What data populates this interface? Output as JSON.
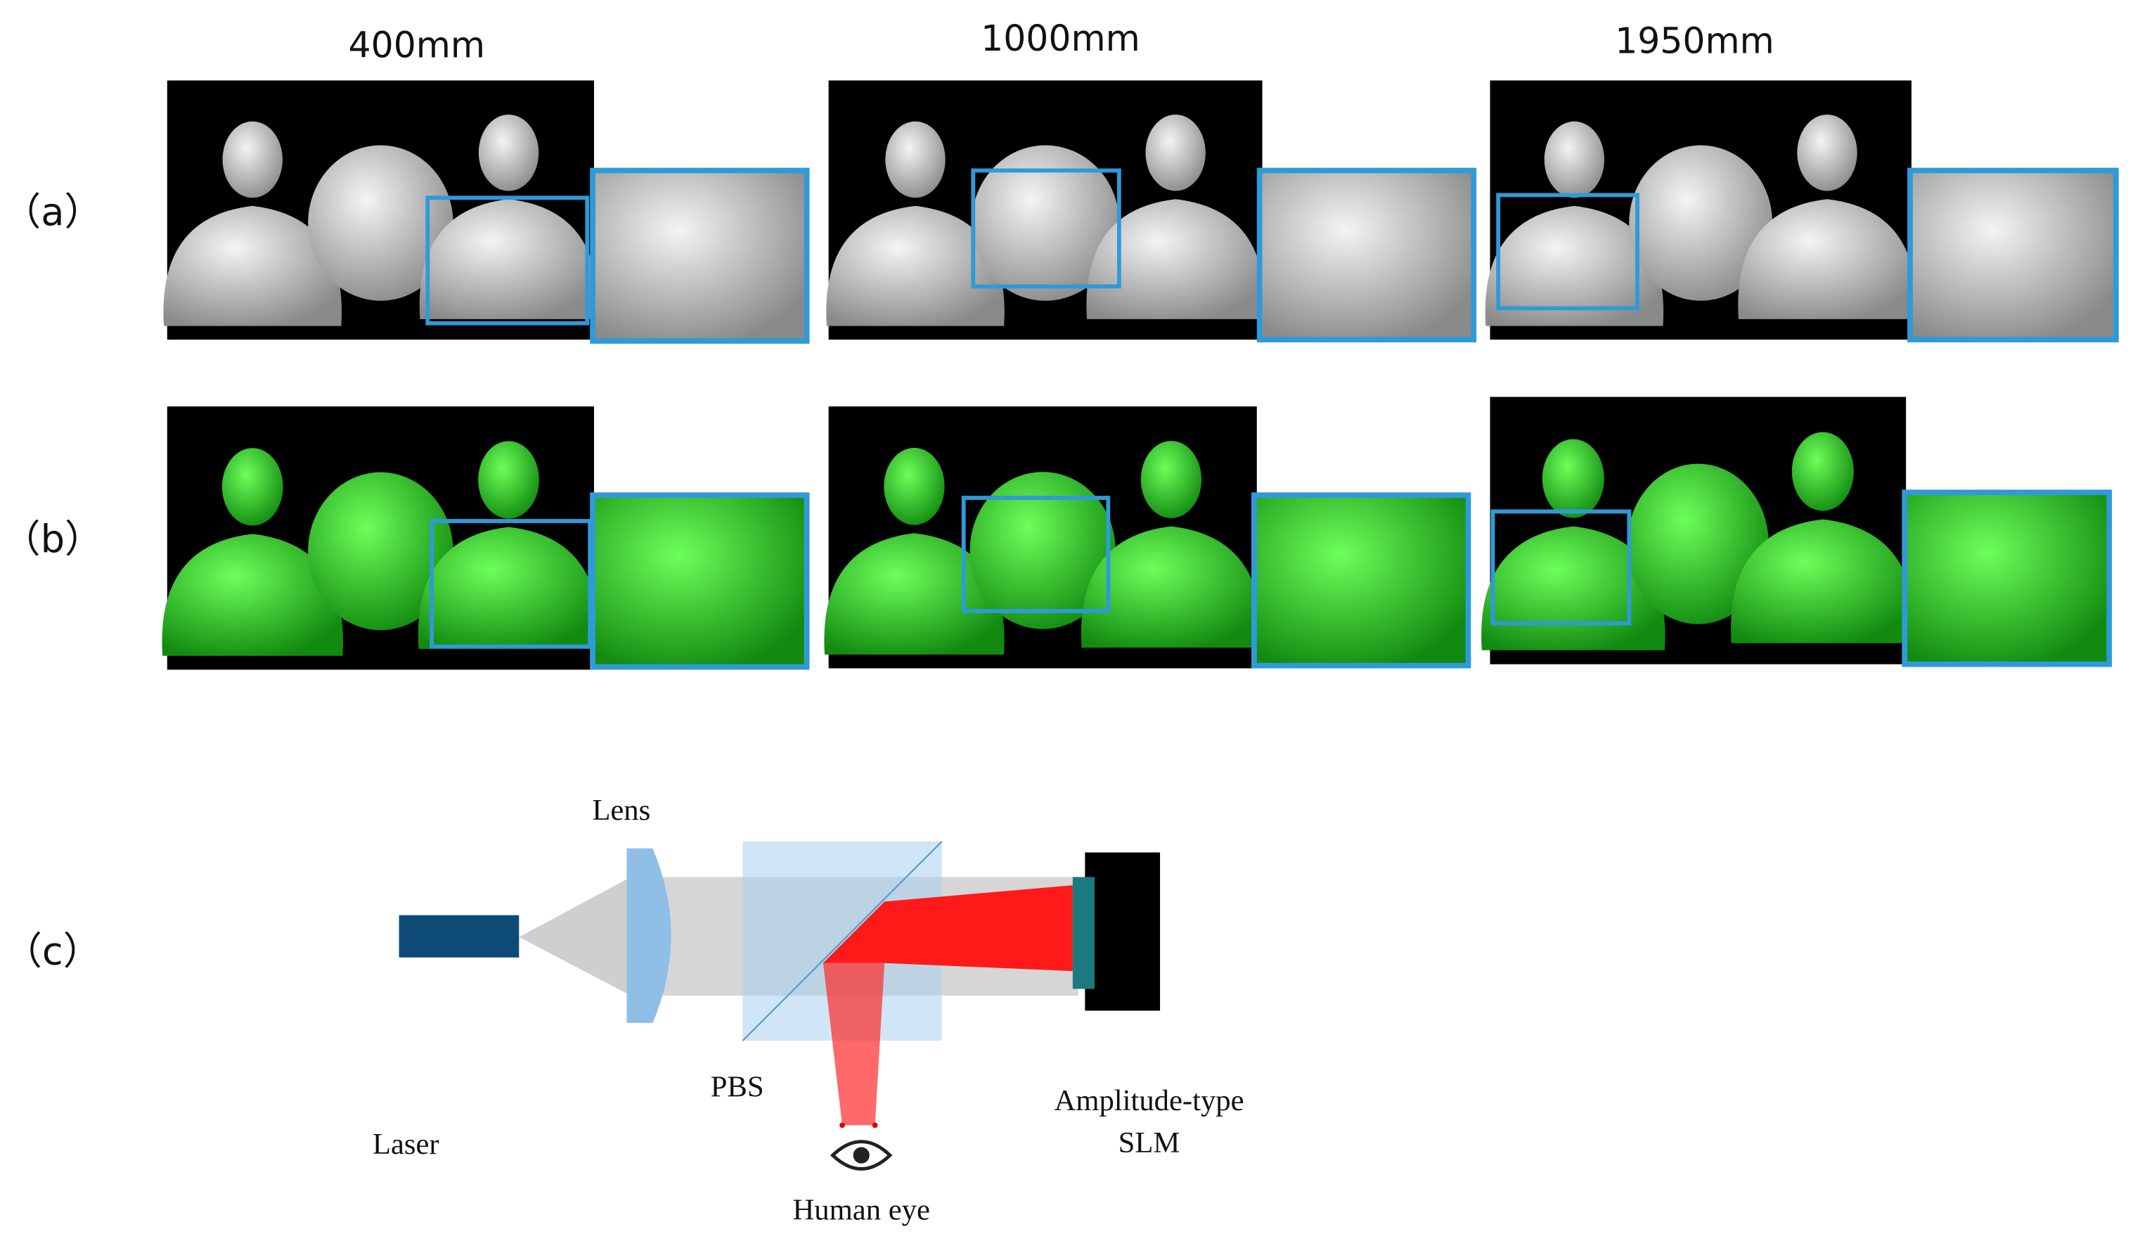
{
  "header": {
    "columns": [
      "400mm",
      "1000mm",
      "1950mm"
    ]
  },
  "rows": {
    "labels": [
      "（a）",
      "（b）",
      "（c）"
    ]
  },
  "diagram": {
    "lens": "Lens",
    "pbs": "PBS",
    "laser": "Laser",
    "slm": [
      "Amplitude-type",
      "SLM"
    ],
    "eye": "Human eye"
  }
}
